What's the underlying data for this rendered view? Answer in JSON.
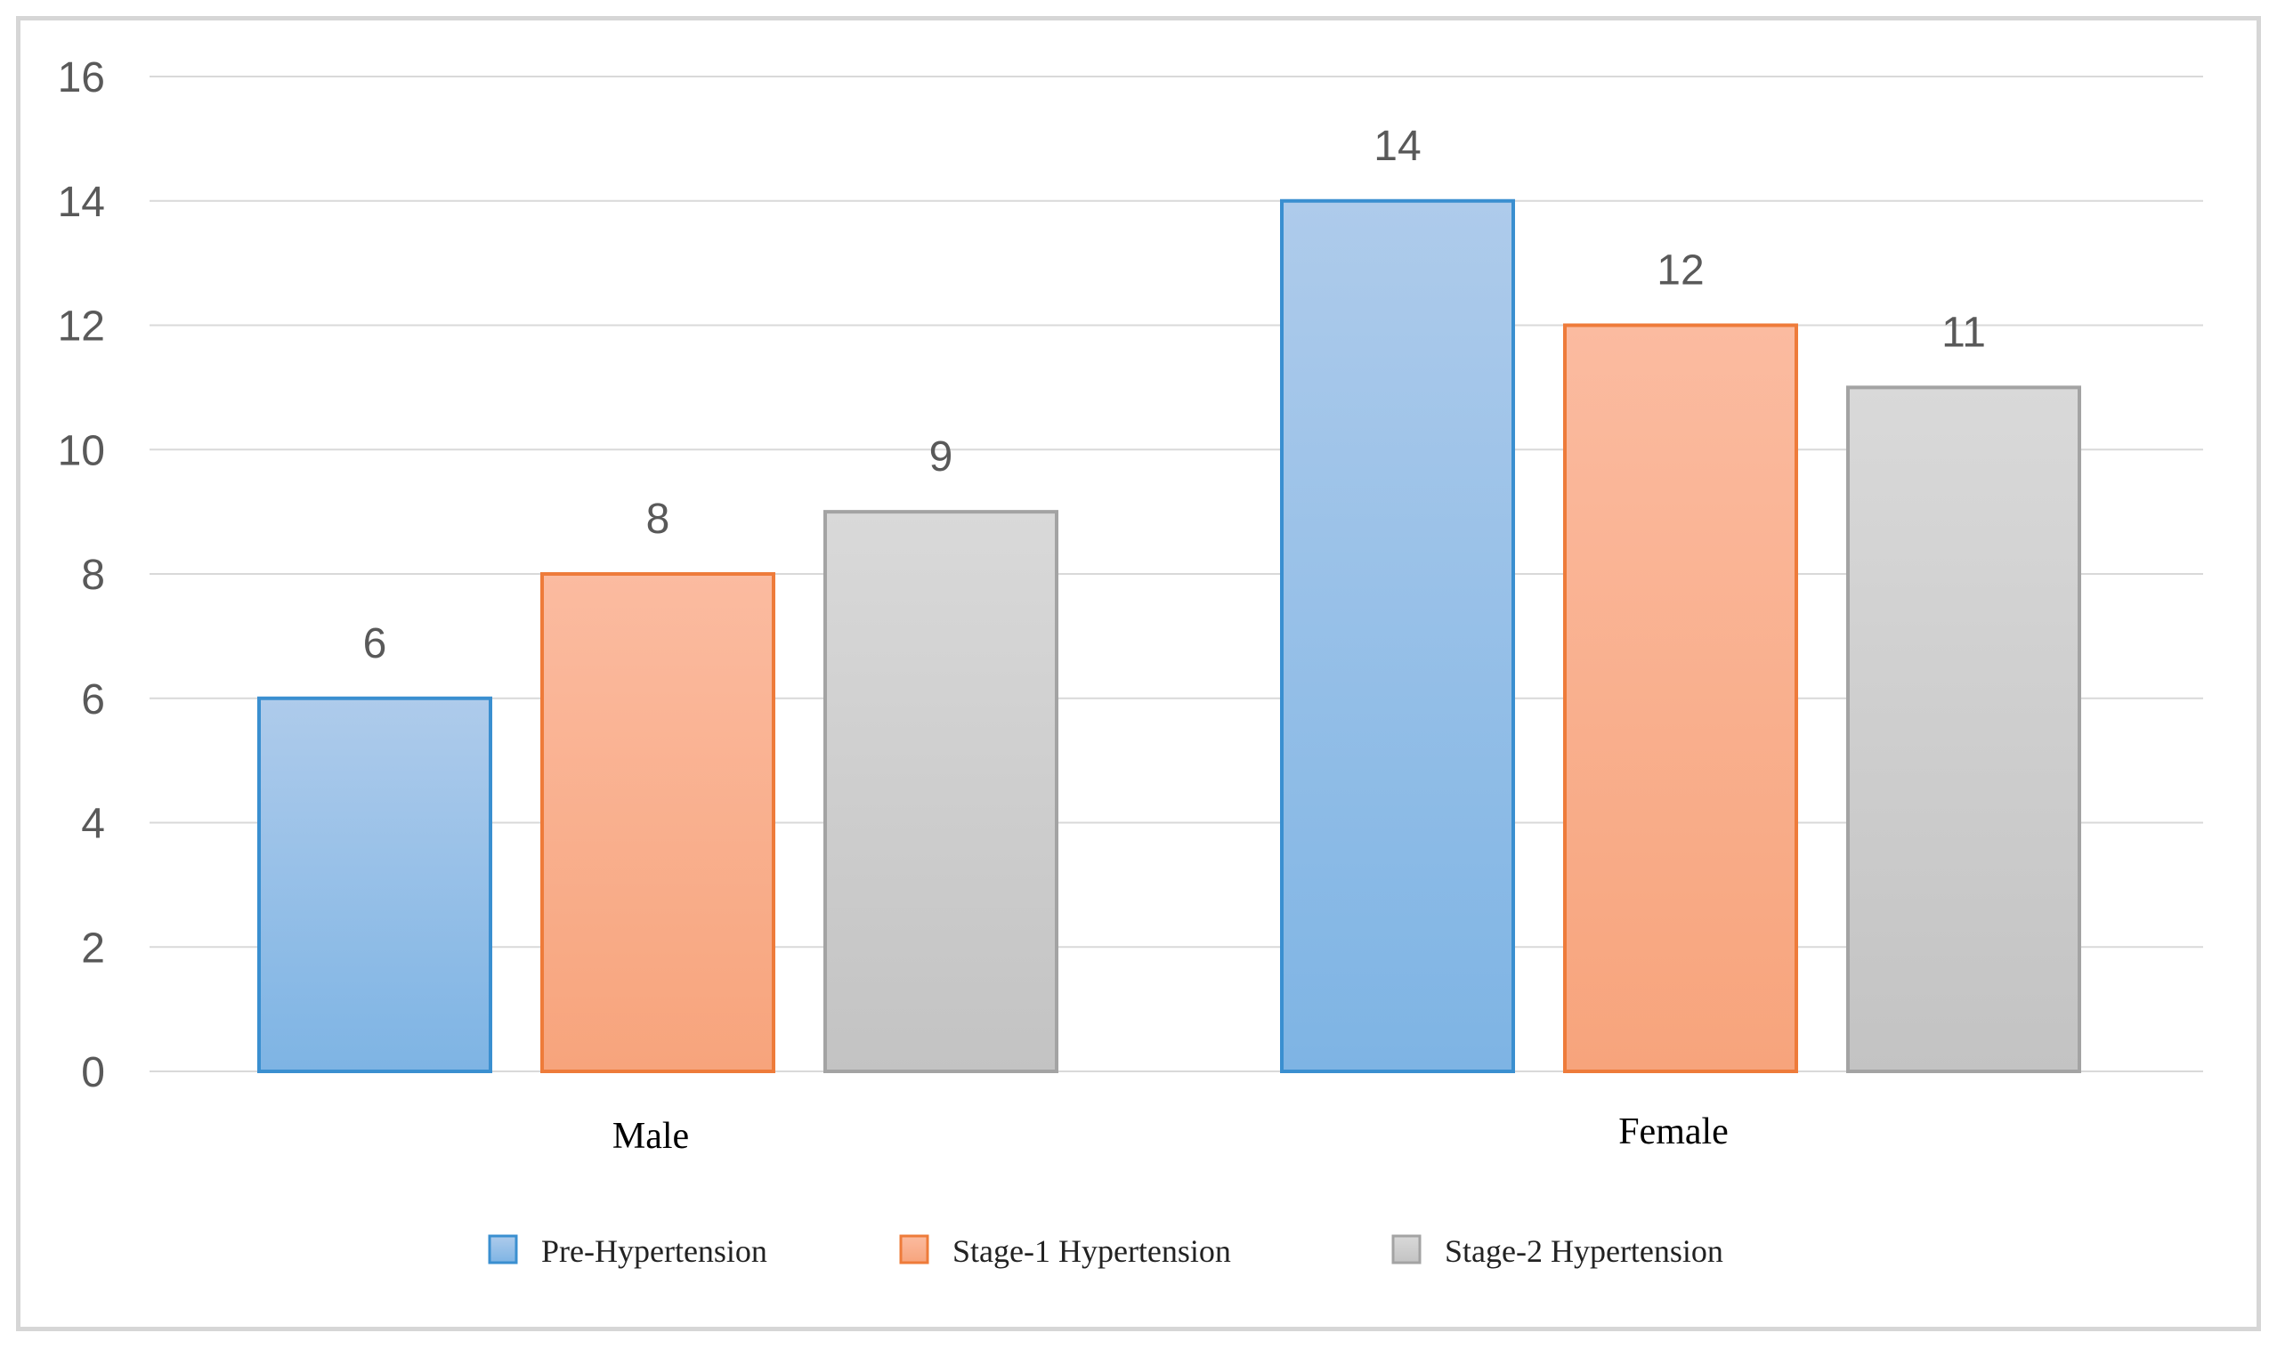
{
  "chart_data": {
    "type": "bar",
    "title": "",
    "xlabel": "",
    "ylabel": "",
    "categories": [
      "Male",
      "Female"
    ],
    "ylim": [
      0,
      16
    ],
    "yticks": [
      0,
      2,
      4,
      6,
      8,
      10,
      12,
      14,
      16
    ],
    "grid": true,
    "legend_position": "bottom",
    "series": [
      {
        "name": "Pre-Hypertension",
        "values": [
          6,
          14
        ],
        "fill_top": "#aecbeb",
        "fill_bottom": "#7eb4e4",
        "stroke": "#3a8fd0"
      },
      {
        "name": "Stage-1 Hypertension",
        "values": [
          8,
          12
        ],
        "fill_top": "#fbbba0",
        "fill_bottom": "#f7a47c",
        "stroke": "#ee7b3a"
      },
      {
        "name": "Stage-2 Hypertension",
        "values": [
          9,
          11
        ],
        "fill_top": "#d9d9d9",
        "fill_bottom": "#c3c3c3",
        "stroke": "#a3a3a3"
      }
    ]
  }
}
